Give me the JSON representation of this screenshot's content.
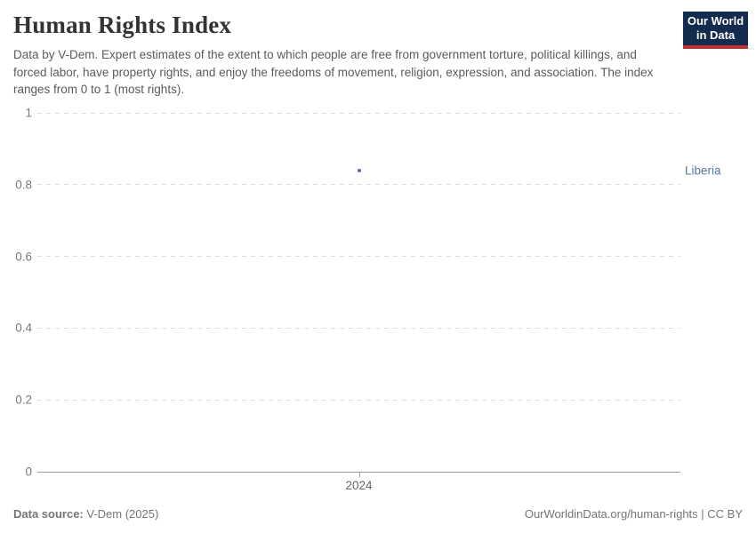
{
  "header": {
    "title": "Human Rights Index",
    "subtitle": "Data by V-Dem. Expert estimates of the extent to which people are free from government torture, political killings, and forced labor, have property rights, and enjoy the freedoms of movement, religion, expression, and association. The index ranges from 0 to 1 (most rights).",
    "logo": {
      "line1": "Our World",
      "line2": "in Data"
    }
  },
  "chart_data": {
    "type": "scatter",
    "title": "Human Rights Index",
    "series": [
      {
        "name": "Liberia",
        "x": [
          2024
        ],
        "y": [
          0.84
        ]
      }
    ],
    "x_ticks": [
      "2024"
    ],
    "y_ticks": [
      0,
      0.2,
      0.4,
      0.6,
      0.8,
      1
    ],
    "y_tick_labels": [
      "0",
      "0.2",
      "0.4",
      "0.6",
      "0.8",
      "1"
    ],
    "ylim": [
      0,
      1
    ],
    "grid": true,
    "legend_position": "right-entity-label",
    "entity_label": "Liberia"
  },
  "colors": {
    "series_blue": "#4c6a9c",
    "entity_label_blue": "#5878a3",
    "logo_navy": "#122b4e",
    "logo_red": "#c52f2f",
    "gridline_gray": "#dcdcdc"
  },
  "footer": {
    "source_label": "Data source:",
    "source_value": " V-Dem (2025)",
    "credit": "OurWorldinData.org/human-rights | CC BY"
  }
}
